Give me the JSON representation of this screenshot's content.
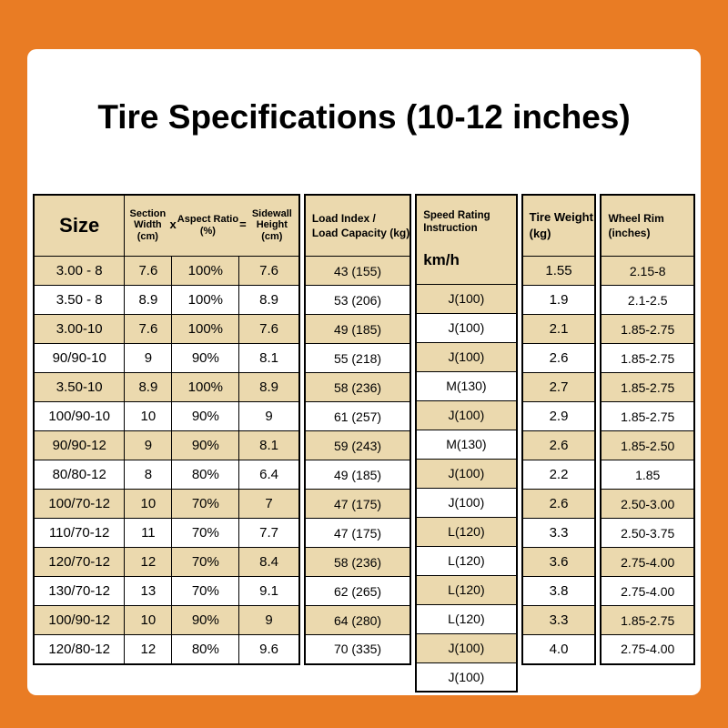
{
  "title": "Tire Specifications (10-12 inches)",
  "colors": {
    "background_orange": "#E97C24",
    "panel_white": "#FFFFFF",
    "row_tan": "#EBD9AE",
    "border_black": "#000000"
  },
  "table": {
    "headers": {
      "size": "Size",
      "section_width": "Section Width (cm)",
      "multiply_sign": "x",
      "aspect_ratio": "Aspect Ratio",
      "aspect_ratio_unit": "(%)",
      "equals_sign": "=",
      "sidewall_height": "Sidewall Height (cm)",
      "load_index": "Load Index /\nLoad Capacity (kg)",
      "speed_rating": "Speed Rating\nInstruction",
      "speed_unit": "km/h",
      "tire_weight": "Tire Weight\n(kg)",
      "wheel_rim": "Wheel Rim\n(inches)"
    },
    "rows": [
      {
        "size": "3.00 - 8",
        "width": "7.6",
        "ratio": "100%",
        "height": "7.6",
        "load": "43 (155)",
        "speed": "J(100)",
        "weight": "1.55",
        "rim": "2.15-8"
      },
      {
        "size": "3.50 - 8",
        "width": "8.9",
        "ratio": "100%",
        "height": "8.9",
        "load": "53 (206)",
        "speed": "J(100)",
        "weight": "1.9",
        "rim": "2.1-2.5"
      },
      {
        "size": "3.00-10",
        "width": "7.6",
        "ratio": "100%",
        "height": "7.6",
        "load": "49 (185)",
        "speed": "J(100)",
        "weight": "2.1",
        "rim": "1.85-2.75"
      },
      {
        "size": "90/90-10",
        "width": "9",
        "ratio": "90%",
        "height": "8.1",
        "load": "55 (218)",
        "speed": "M(130)",
        "weight": "2.6",
        "rim": "1.85-2.75"
      },
      {
        "size": "3.50-10",
        "width": "8.9",
        "ratio": "100%",
        "height": "8.9",
        "load": "58 (236)",
        "speed": "J(100)",
        "weight": "2.7",
        "rim": "1.85-2.75"
      },
      {
        "size": "100/90-10",
        "width": "10",
        "ratio": "90%",
        "height": "9",
        "load": "61 (257)",
        "speed": "M(130)",
        "weight": "2.9",
        "rim": "1.85-2.75"
      },
      {
        "size": "90/90-12",
        "width": "9",
        "ratio": "90%",
        "height": "8.1",
        "load": "59 (243)",
        "speed": "J(100)",
        "weight": "2.6",
        "rim": "1.85-2.50"
      },
      {
        "size": "80/80-12",
        "width": "8",
        "ratio": "80%",
        "height": "6.4",
        "load": "49 (185)",
        "speed": "J(100)",
        "weight": "2.2",
        "rim": "1.85"
      },
      {
        "size": "100/70-12",
        "width": "10",
        "ratio": "70%",
        "height": "7",
        "load": "47 (175)",
        "speed": "L(120)",
        "weight": "2.6",
        "rim": "2.50-3.00"
      },
      {
        "size": "110/70-12",
        "width": "11",
        "ratio": "70%",
        "height": "7.7",
        "load": "47 (175)",
        "speed": "L(120)",
        "weight": "3.3",
        "rim": "2.50-3.75"
      },
      {
        "size": "120/70-12",
        "width": "12",
        "ratio": "70%",
        "height": "8.4",
        "load": "58 (236)",
        "speed": "L(120)",
        "weight": "3.6",
        "rim": "2.75-4.00"
      },
      {
        "size": "130/70-12",
        "width": "13",
        "ratio": "70%",
        "height": "9.1",
        "load": "62 (265)",
        "speed": "L(120)",
        "weight": "3.8",
        "rim": "2.75-4.00"
      },
      {
        "size": "100/90-12",
        "width": "10",
        "ratio": "90%",
        "height": "9",
        "load": "64 (280)",
        "speed": "J(100)",
        "weight": "3.3",
        "rim": "1.85-2.75"
      },
      {
        "size": "120/80-12",
        "width": "12",
        "ratio": "80%",
        "height": "9.6",
        "load": "70 (335)",
        "speed": "J(100)",
        "weight": "4.0",
        "rim": "2.75-4.00"
      }
    ]
  }
}
